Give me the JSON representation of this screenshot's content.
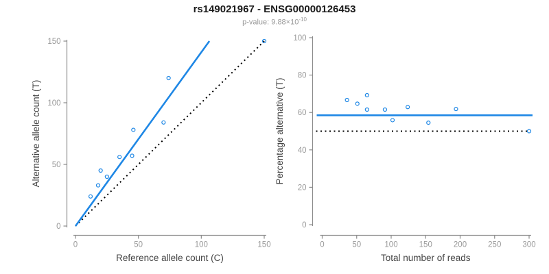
{
  "title": "rs149021967 - ENSG00000126453",
  "subtitle": {
    "base": "p-value: 9.88×10",
    "exponent": "-10"
  },
  "colors": {
    "accent_blue": "#1E87E5",
    "null_line_black": "#000000",
    "axis_gray": "#8C8C8C",
    "tick_label_gray": "#999999",
    "axis_title_gray": "#444444"
  },
  "chart_data": {
    "type": "scatter",
    "title": "rs149021967 - ENSG00000126453",
    "subtitle": "p-value: 9.88×10^-10",
    "samples": {
      "reference_allele_count": [
        12,
        18,
        20,
        25,
        35,
        45,
        46,
        70,
        74,
        150
      ],
      "alternative_allele_count": [
        24,
        33,
        45,
        40,
        56,
        57,
        78,
        84,
        120,
        150
      ]
    },
    "fitted_alt_percentage": 58.5,
    "null_alt_percentage": 50,
    "legend": "none",
    "grid": false,
    "panels": [
      {
        "id": "counts",
        "xlabel": "Reference allele count (C)",
        "ylabel": "Alternative allele count (T)",
        "xlim": [
          0,
          150
        ],
        "ylim": [
          0,
          150
        ],
        "xticks": [
          0,
          50,
          100,
          150
        ],
        "yticks": [
          0,
          50,
          100,
          150
        ],
        "fit_line": "through-origin-slope",
        "null_line": "identity-dotted"
      },
      {
        "id": "percentage",
        "xlabel": "Total number of reads",
        "ylabel": "Percentage alternative (T)",
        "xlim": [
          0,
          300
        ],
        "ylim": [
          0,
          100
        ],
        "xticks": [
          0,
          50,
          100,
          150,
          200,
          250,
          300
        ],
        "yticks": [
          0,
          20,
          40,
          60,
          80,
          100
        ],
        "fit_line": "horizontal-at-fitted-percentage",
        "null_line": "horizontal-at-50-dotted"
      }
    ]
  }
}
